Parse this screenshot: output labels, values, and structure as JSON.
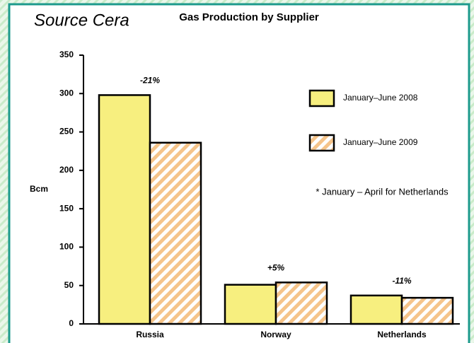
{
  "chart_data": {
    "type": "bar",
    "source": "Source Cera",
    "title": "Gas Production by Supplier",
    "y_label": "Bcm",
    "note": "* January –  April for Netherlands",
    "categories": [
      "Russia",
      "Norway",
      "Netherlands"
    ],
    "series": [
      {
        "name": "January–June 2008",
        "color": "#f7ef7f",
        "pattern": "solid",
        "values": [
          298,
          51,
          37
        ]
      },
      {
        "name": "January–June 2009",
        "color": "#f5c48a",
        "pattern": "hatch",
        "values": [
          236,
          54,
          34
        ]
      }
    ],
    "annotations": [
      "-21%",
      "+5%",
      "-11%"
    ],
    "ylim": [
      0,
      350
    ],
    "yticks": [
      0,
      50,
      100,
      150,
      200,
      250,
      300,
      350
    ]
  }
}
